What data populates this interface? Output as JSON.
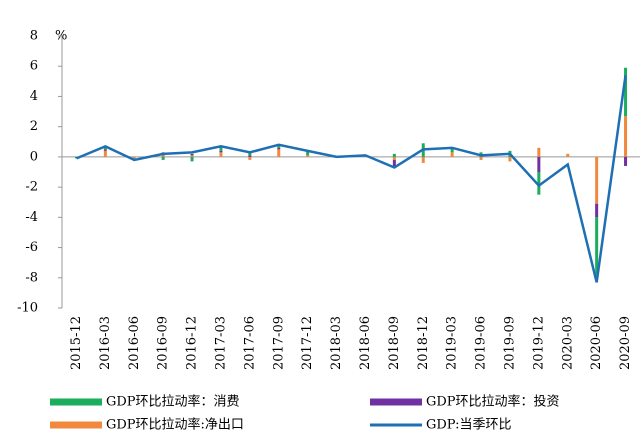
{
  "chart_data": {
    "type": "bar",
    "stacked": true,
    "y_label": "%",
    "categories": [
      "2015-12",
      "2016-03",
      "2016-06",
      "2016-09",
      "2016-12",
      "2017-03",
      "2017-06",
      "2017-09",
      "2017-12",
      "2018-03",
      "2018-06",
      "2018-09",
      "2018-12",
      "2019-03",
      "2019-06",
      "2019-09",
      "2019-12",
      "2020-03",
      "2020-06",
      "2020-09"
    ],
    "series": [
      {
        "name": "GDP环比拉动率：消费",
        "color": "#1aad5c",
        "type": "bar",
        "values": [
          -0.1,
          0.2,
          -0.1,
          -0.2,
          -0.3,
          0.3,
          0.2,
          0.2,
          0.3,
          0.0,
          0.0,
          0.2,
          0.9,
          0.3,
          0.3,
          0.4,
          -1.5,
          0.0,
          -3.8,
          3.2
        ]
      },
      {
        "name": "GDP环比拉动率：投资",
        "color": "#7030a0",
        "type": "bar",
        "values": [
          0.0,
          0.1,
          0.0,
          0.2,
          0.1,
          0.1,
          0.1,
          0.1,
          0.0,
          0.0,
          0.0,
          -0.5,
          0.0,
          0.0,
          0.0,
          0.0,
          -1.0,
          0.0,
          -0.9,
          -0.6
        ]
      },
      {
        "name": "GDP环比拉动率:净出口",
        "color": "#f0883e",
        "type": "bar",
        "values": [
          0.0,
          0.4,
          -0.1,
          0.1,
          0.1,
          0.3,
          -0.2,
          0.5,
          0.1,
          0.0,
          0.0,
          -0.2,
          -0.4,
          0.3,
          -0.2,
          -0.3,
          0.6,
          0.2,
          -3.1,
          2.7
        ]
      },
      {
        "name": "GDP:当季环比",
        "color": "#1f6fb4",
        "type": "line",
        "values": [
          -0.1,
          0.7,
          -0.2,
          0.2,
          0.3,
          0.7,
          0.3,
          0.8,
          0.4,
          0.0,
          0.1,
          -0.7,
          0.5,
          0.6,
          0.1,
          0.2,
          -1.9,
          -0.5,
          -8.3,
          5.4
        ]
      }
    ],
    "ylim": [
      -10,
      8
    ],
    "yticks": [
      -10,
      -8,
      -6,
      -4,
      -2,
      0,
      2,
      4,
      6,
      8
    ]
  }
}
